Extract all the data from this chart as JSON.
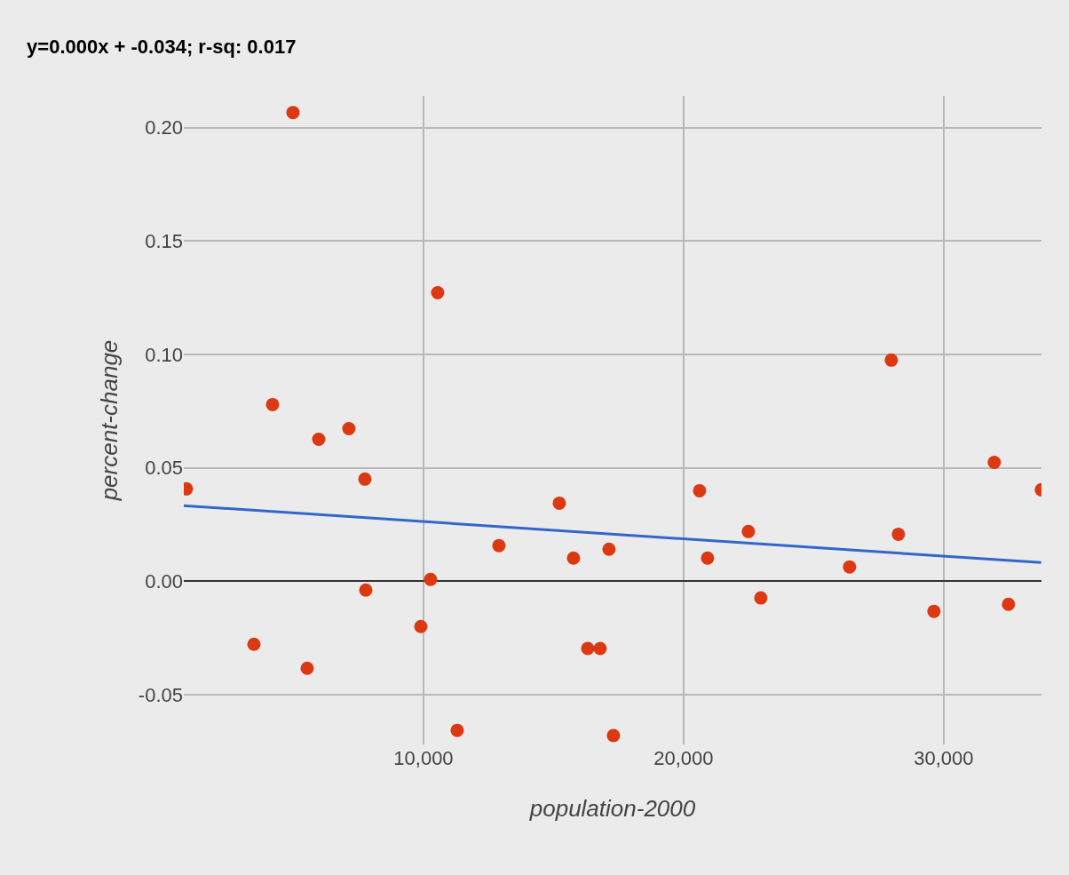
{
  "chart_data": {
    "type": "scatter",
    "title": "y=0.000x + -0.034; r-sq: 0.017",
    "xlabel": "population-2000",
    "ylabel": "percent-change",
    "xlim": [
      785,
      33760
    ],
    "ylim": [
      -0.072,
      0.214
    ],
    "xticks": [
      {
        "value": 10000,
        "label": "10,000"
      },
      {
        "value": 20000,
        "label": "20,000"
      },
      {
        "value": 30000,
        "label": "30,000"
      }
    ],
    "yticks": [
      {
        "value": -0.05,
        "label": "-0.05"
      },
      {
        "value": 0,
        "label": "0.00"
      },
      {
        "value": 0.05,
        "label": "0.05"
      },
      {
        "value": 0.1,
        "label": "0.10"
      },
      {
        "value": 0.15,
        "label": "0.15"
      },
      {
        "value": 0.2,
        "label": "0.20"
      }
    ],
    "grid": true,
    "marker": "circle",
    "series": [
      {
        "color": "#dc3912",
        "x": [
          887,
          3481,
          4198,
          4983,
          5529,
          5973,
          7133,
          7747,
          7782,
          9898,
          10273,
          10546,
          11297,
          12901,
          15222,
          15768,
          16314,
          16792,
          17133,
          17304,
          20614,
          20922,
          22491,
          22969,
          26382,
          27986,
          28259,
          29625,
          31945,
          32491,
          33754
        ],
        "values": [
          0.0407,
          -0.0278,
          0.0779,
          0.2067,
          -0.0384,
          0.0626,
          0.0673,
          0.045,
          -0.0039,
          -0.02,
          0.0008,
          0.1272,
          -0.0658,
          0.0157,
          0.0344,
          0.0102,
          -0.0297,
          -0.0297,
          0.0141,
          -0.0681,
          0.0399,
          0.0102,
          0.0219,
          -0.0074,
          0.0063,
          0.0975,
          0.0207,
          -0.0133,
          0.0524,
          -0.0102,
          0.0403
        ]
      },
      {
        "type": "line",
        "marker": "none",
        "color": "#3366cc",
        "x": [
          785,
          33750
        ],
        "values": [
          0.0333,
          0.0082
        ]
      }
    ]
  }
}
